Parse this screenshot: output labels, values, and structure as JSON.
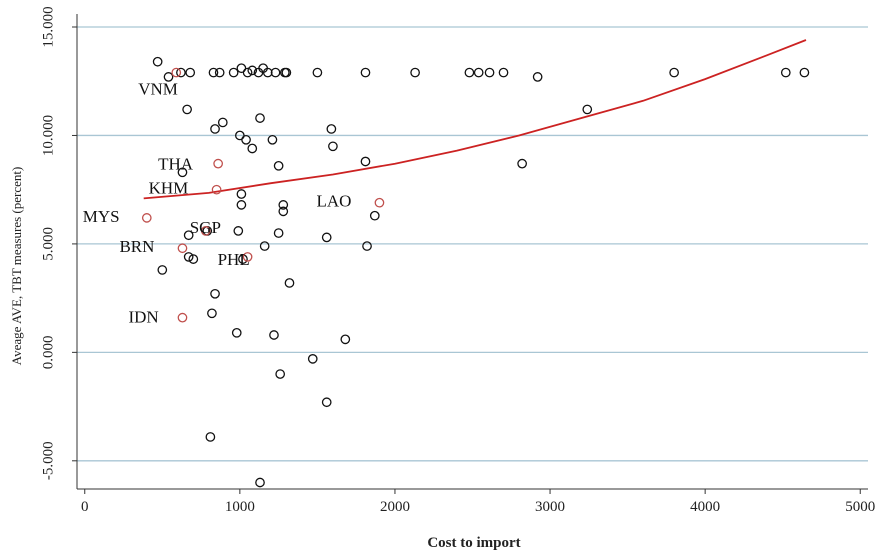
{
  "chart_data": {
    "type": "scatter",
    "title": "",
    "xlabel": "Cost to import",
    "ylabel": "Aveage AVE, TBT measures (percent)",
    "xlim": [
      -50,
      5050
    ],
    "ylim": [
      -6.3,
      15.6
    ],
    "x_ticks": [
      0,
      1000,
      2000,
      3000,
      4000,
      5000
    ],
    "x_tick_labels": [
      "0",
      "1000",
      "2000",
      "3000",
      "4000",
      "5000"
    ],
    "y_ticks": [
      -5,
      0,
      5,
      10,
      15
    ],
    "y_tick_labels": [
      "-5.000",
      "0.000",
      "5.000",
      "10.000",
      "15.000"
    ],
    "grid": "horizontal",
    "colors": {
      "points": "#111111",
      "highlight": "#c0504d",
      "fit": "#cc2222",
      "grid": "#a9c6d4"
    },
    "series": [
      {
        "kind": "points",
        "points": [
          [
            470,
            13.4
          ],
          [
            540,
            12.7
          ],
          [
            620,
            12.9
          ],
          [
            680,
            12.9
          ],
          [
            830,
            12.9
          ],
          [
            870,
            12.9
          ],
          [
            960,
            12.9
          ],
          [
            1010,
            13.1
          ],
          [
            1050,
            12.9
          ],
          [
            1080,
            13.0
          ],
          [
            1120,
            12.9
          ],
          [
            1150,
            13.1
          ],
          [
            1180,
            12.9
          ],
          [
            1230,
            12.9
          ],
          [
            1290,
            12.9
          ],
          [
            1300,
            12.9
          ],
          [
            1500,
            12.9
          ],
          [
            1810,
            12.9
          ],
          [
            2130,
            12.9
          ],
          [
            2480,
            12.9
          ],
          [
            2540,
            12.9
          ],
          [
            2610,
            12.9
          ],
          [
            2700,
            12.9
          ],
          [
            2920,
            12.7
          ],
          [
            3800,
            12.9
          ],
          [
            4520,
            12.9
          ],
          [
            4640,
            12.9
          ],
          [
            660,
            11.2
          ],
          [
            3240,
            11.2
          ],
          [
            890,
            10.6
          ],
          [
            1130,
            10.8
          ],
          [
            840,
            10.3
          ],
          [
            1000,
            10.0
          ],
          [
            1040,
            9.8
          ],
          [
            1080,
            9.4
          ],
          [
            1210,
            9.8
          ],
          [
            1590,
            10.3
          ],
          [
            1600,
            9.5
          ],
          [
            1250,
            8.6
          ],
          [
            1810,
            8.8
          ],
          [
            2820,
            8.7
          ],
          [
            630,
            8.3
          ],
          [
            1010,
            7.3
          ],
          [
            1010,
            6.8
          ],
          [
            1280,
            6.8
          ],
          [
            1280,
            6.5
          ],
          [
            1870,
            6.3
          ],
          [
            670,
            5.4
          ],
          [
            790,
            5.6
          ],
          [
            990,
            5.6
          ],
          [
            1250,
            5.5
          ],
          [
            1560,
            5.3
          ],
          [
            1160,
            4.9
          ],
          [
            1820,
            4.9
          ],
          [
            670,
            4.4
          ],
          [
            700,
            4.3
          ],
          [
            1020,
            4.3
          ],
          [
            500,
            3.8
          ],
          [
            1320,
            3.2
          ],
          [
            840,
            2.7
          ],
          [
            820,
            1.8
          ],
          [
            980,
            0.9
          ],
          [
            1220,
            0.8
          ],
          [
            1680,
            0.6
          ],
          [
            1470,
            -0.3
          ],
          [
            1260,
            -1.0
          ],
          [
            1560,
            -2.3
          ],
          [
            810,
            -3.9
          ],
          [
            1130,
            -6.0
          ]
        ]
      },
      {
        "kind": "highlighted",
        "points": [
          {
            "label": "VNM",
            "x": 590,
            "y": 12.9
          },
          {
            "label": "THA",
            "x": 860,
            "y": 8.7
          },
          {
            "label": "KHM",
            "x": 850,
            "y": 7.5
          },
          {
            "label": "LAO",
            "x": 1900,
            "y": 6.9
          },
          {
            "label": "MYS",
            "x": 400,
            "y": 6.2
          },
          {
            "label": "SGP",
            "x": 780,
            "y": 5.6
          },
          {
            "label": "BRN",
            "x": 630,
            "y": 4.8
          },
          {
            "label": "PHL",
            "x": 1050,
            "y": 4.4
          },
          {
            "label": "IDN",
            "x": 630,
            "y": 1.6
          }
        ]
      },
      {
        "kind": "fit",
        "points": [
          [
            380,
            7.1
          ],
          [
            800,
            7.35
          ],
          [
            1200,
            7.8
          ],
          [
            1600,
            8.2
          ],
          [
            2000,
            8.7
          ],
          [
            2400,
            9.3
          ],
          [
            2800,
            10.0
          ],
          [
            3200,
            10.8
          ],
          [
            3600,
            11.6
          ],
          [
            4000,
            12.6
          ],
          [
            4400,
            13.7
          ],
          [
            4650,
            14.4
          ]
        ]
      }
    ],
    "labels": {
      "VNM": "VNM",
      "THA": "THA",
      "KHM": "KHM",
      "LAO": "LAO",
      "MYS": "MYS",
      "SGP": "SGP",
      "BRN": "BRN",
      "PHL": "PHL",
      "IDN": "IDN"
    }
  }
}
